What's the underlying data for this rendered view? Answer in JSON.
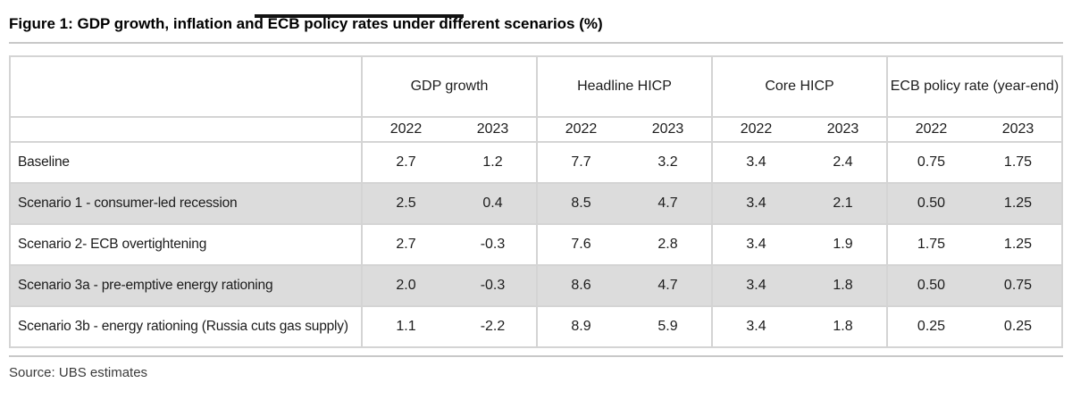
{
  "title": "Figure 1: GDP growth, inflation and ECB policy rates under different scenarios (%)",
  "source": "Source: UBS estimates",
  "colors": {
    "row_alt_background": "#dcdcdc",
    "grid_border": "#d4d4d4",
    "rule": "#c8c8c8",
    "text": "#1c1c1c"
  },
  "chart_data": {
    "type": "table",
    "title": "Figure 1: GDP growth, inflation and ECB policy rates under different scenarios (%)",
    "column_groups": [
      "GDP growth",
      "Headline HICP",
      "Core HICP",
      "ECB policy rate (year-end)"
    ],
    "years": [
      "2022",
      "2023"
    ],
    "rows": [
      {
        "label": "Baseline",
        "values": [
          "2.7",
          "1.2",
          "7.7",
          "3.2",
          "3.4",
          "2.4",
          "0.75",
          "1.75"
        ]
      },
      {
        "label": "Scenario 1 - consumer-led recession",
        "values": [
          "2.5",
          "0.4",
          "8.5",
          "4.7",
          "3.4",
          "2.1",
          "0.50",
          "1.25"
        ]
      },
      {
        "label": "Scenario 2- ECB overtightening",
        "values": [
          "2.7",
          "-0.3",
          "7.6",
          "2.8",
          "3.4",
          "1.9",
          "1.75",
          "1.25"
        ]
      },
      {
        "label": "Scenario 3a - pre-emptive energy rationing",
        "values": [
          "2.0",
          "-0.3",
          "8.6",
          "4.7",
          "3.4",
          "1.8",
          "0.50",
          "0.75"
        ]
      },
      {
        "label": "Scenario 3b - energy rationing (Russia cuts gas supply)",
        "values": [
          "1.1",
          "-2.2",
          "8.9",
          "5.9",
          "3.4",
          "1.8",
          "0.25",
          "0.25"
        ]
      }
    ]
  }
}
